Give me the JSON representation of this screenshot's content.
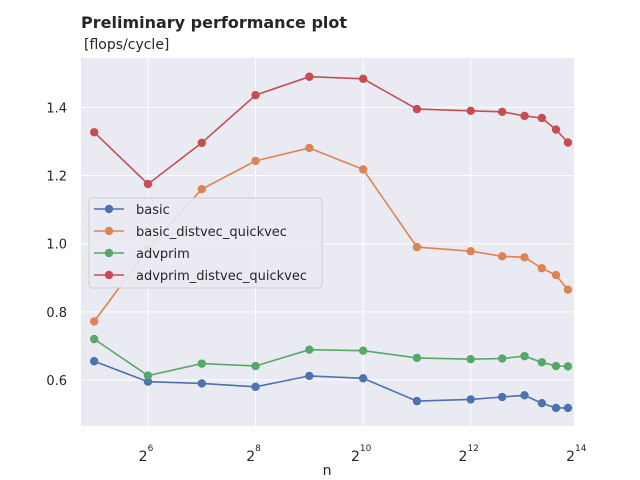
{
  "chart_data": {
    "type": "line",
    "title": "Preliminary performance plot",
    "ylabel": "[flops/cycle]",
    "xlabel": "n",
    "x_scale": "log2",
    "x": [
      32,
      64,
      128,
      256,
      512,
      1024,
      2048,
      4096,
      6144,
      8192,
      10240,
      12288,
      14336
    ],
    "xlim": [
      27,
      15500
    ],
    "ylim": [
      0.465,
      1.545
    ],
    "x_ticks": [
      {
        "value": 64,
        "base": "2",
        "exp": "6"
      },
      {
        "value": 256,
        "base": "2",
        "exp": "8"
      },
      {
        "value": 1024,
        "base": "2",
        "exp": "10"
      },
      {
        "value": 4096,
        "base": "2",
        "exp": "12"
      },
      {
        "value": 16384,
        "base": "2",
        "exp": "14"
      }
    ],
    "y_ticks": [
      {
        "value": 0.6,
        "label": "0.6"
      },
      {
        "value": 0.8,
        "label": "0.8"
      },
      {
        "value": 1.0,
        "label": "1.0"
      },
      {
        "value": 1.2,
        "label": "1.2"
      },
      {
        "value": 1.4,
        "label": "1.4"
      }
    ],
    "grid": true,
    "legend_position": "center-left",
    "series": [
      {
        "name": "basic",
        "color": "#4c72b0",
        "values": [
          0.655,
          0.595,
          0.59,
          0.58,
          0.612,
          0.605,
          0.538,
          0.543,
          0.55,
          0.555,
          0.532,
          0.518,
          0.518
        ]
      },
      {
        "name": "basic_distvec_quickvec",
        "color": "#dd8452",
        "values": [
          0.772,
          0.985,
          1.16,
          1.243,
          1.281,
          1.218,
          0.99,
          0.978,
          0.963,
          0.96,
          0.928,
          0.908,
          0.865
        ]
      },
      {
        "name": "advprim",
        "color": "#55a868",
        "values": [
          0.72,
          0.613,
          0.648,
          0.641,
          0.689,
          0.686,
          0.665,
          0.661,
          0.663,
          0.67,
          0.652,
          0.641,
          0.64
        ]
      },
      {
        "name": "advprim_distvec_quickvec",
        "color": "#c44e52",
        "values": [
          1.327,
          1.175,
          1.296,
          1.436,
          1.49,
          1.484,
          1.395,
          1.39,
          1.387,
          1.375,
          1.369,
          1.335,
          1.297
        ]
      }
    ]
  }
}
